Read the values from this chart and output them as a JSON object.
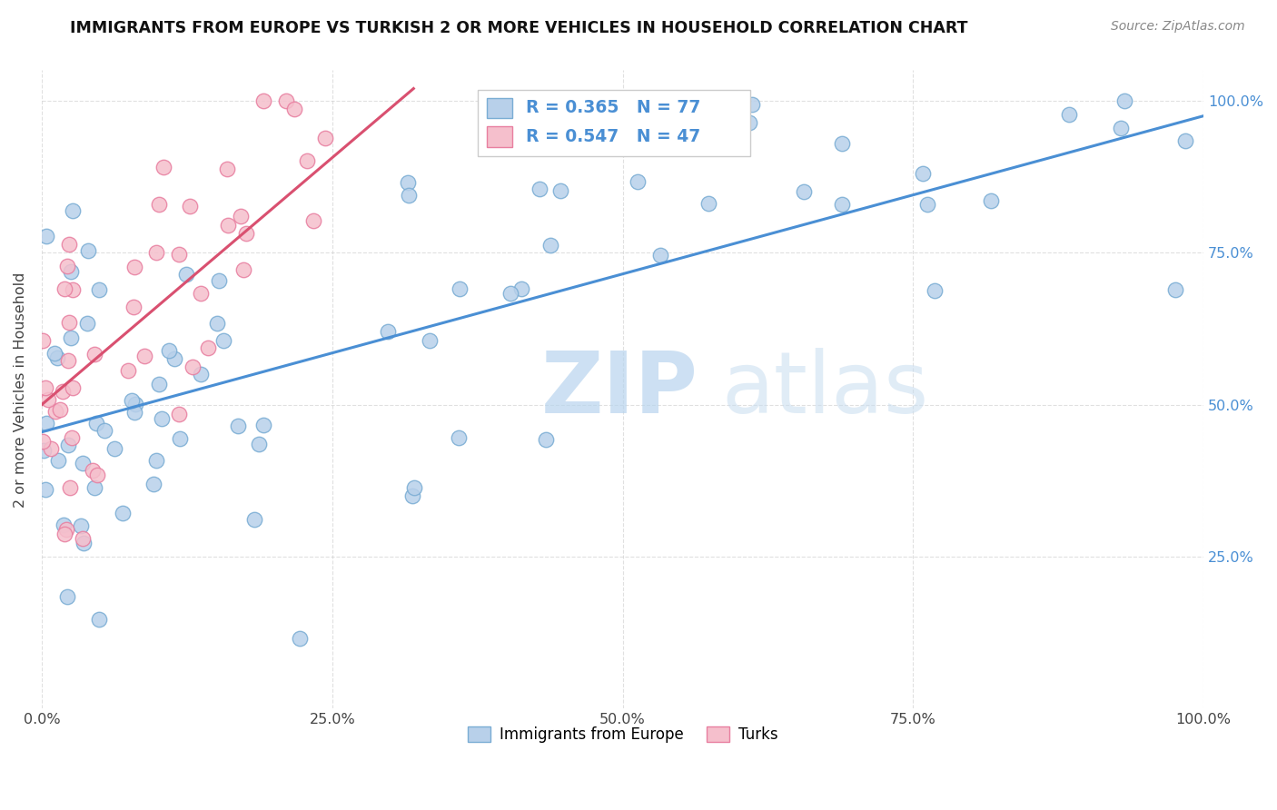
{
  "title": "IMMIGRANTS FROM EUROPE VS TURKISH 2 OR MORE VEHICLES IN HOUSEHOLD CORRELATION CHART",
  "source": "Source: ZipAtlas.com",
  "ylabel": "2 or more Vehicles in Household",
  "xlim": [
    0.0,
    1.0
  ],
  "ylim": [
    0.0,
    1.05
  ],
  "xtick_vals": [
    0.0,
    0.25,
    0.5,
    0.75,
    1.0
  ],
  "xtick_labels": [
    "0.0%",
    "25.0%",
    "50.0%",
    "75.0%",
    "100.0%"
  ],
  "ytick_vals": [
    0.25,
    0.5,
    0.75,
    1.0
  ],
  "ytick_labels": [
    "25.0%",
    "50.0%",
    "75.0%",
    "100.0%"
  ],
  "blue_R": 0.365,
  "blue_N": 77,
  "pink_R": 0.547,
  "pink_N": 47,
  "blue_color": "#b8d0ea",
  "blue_edge": "#7aadd4",
  "pink_color": "#f5bfcc",
  "pink_edge": "#e87fa0",
  "blue_line_color": "#4a8fd4",
  "pink_line_color": "#d95070",
  "watermark_zip": "ZIP",
  "watermark_atlas": "atlas",
  "legend_label_blue": "Immigrants from Europe",
  "legend_label_pink": "Turks",
  "blue_line_x0": 0.0,
  "blue_line_y0": 0.455,
  "blue_line_x1": 1.0,
  "blue_line_y1": 0.975,
  "pink_line_x0": 0.0,
  "pink_line_y0": 0.5,
  "pink_line_x1": 0.32,
  "pink_line_y1": 1.02
}
